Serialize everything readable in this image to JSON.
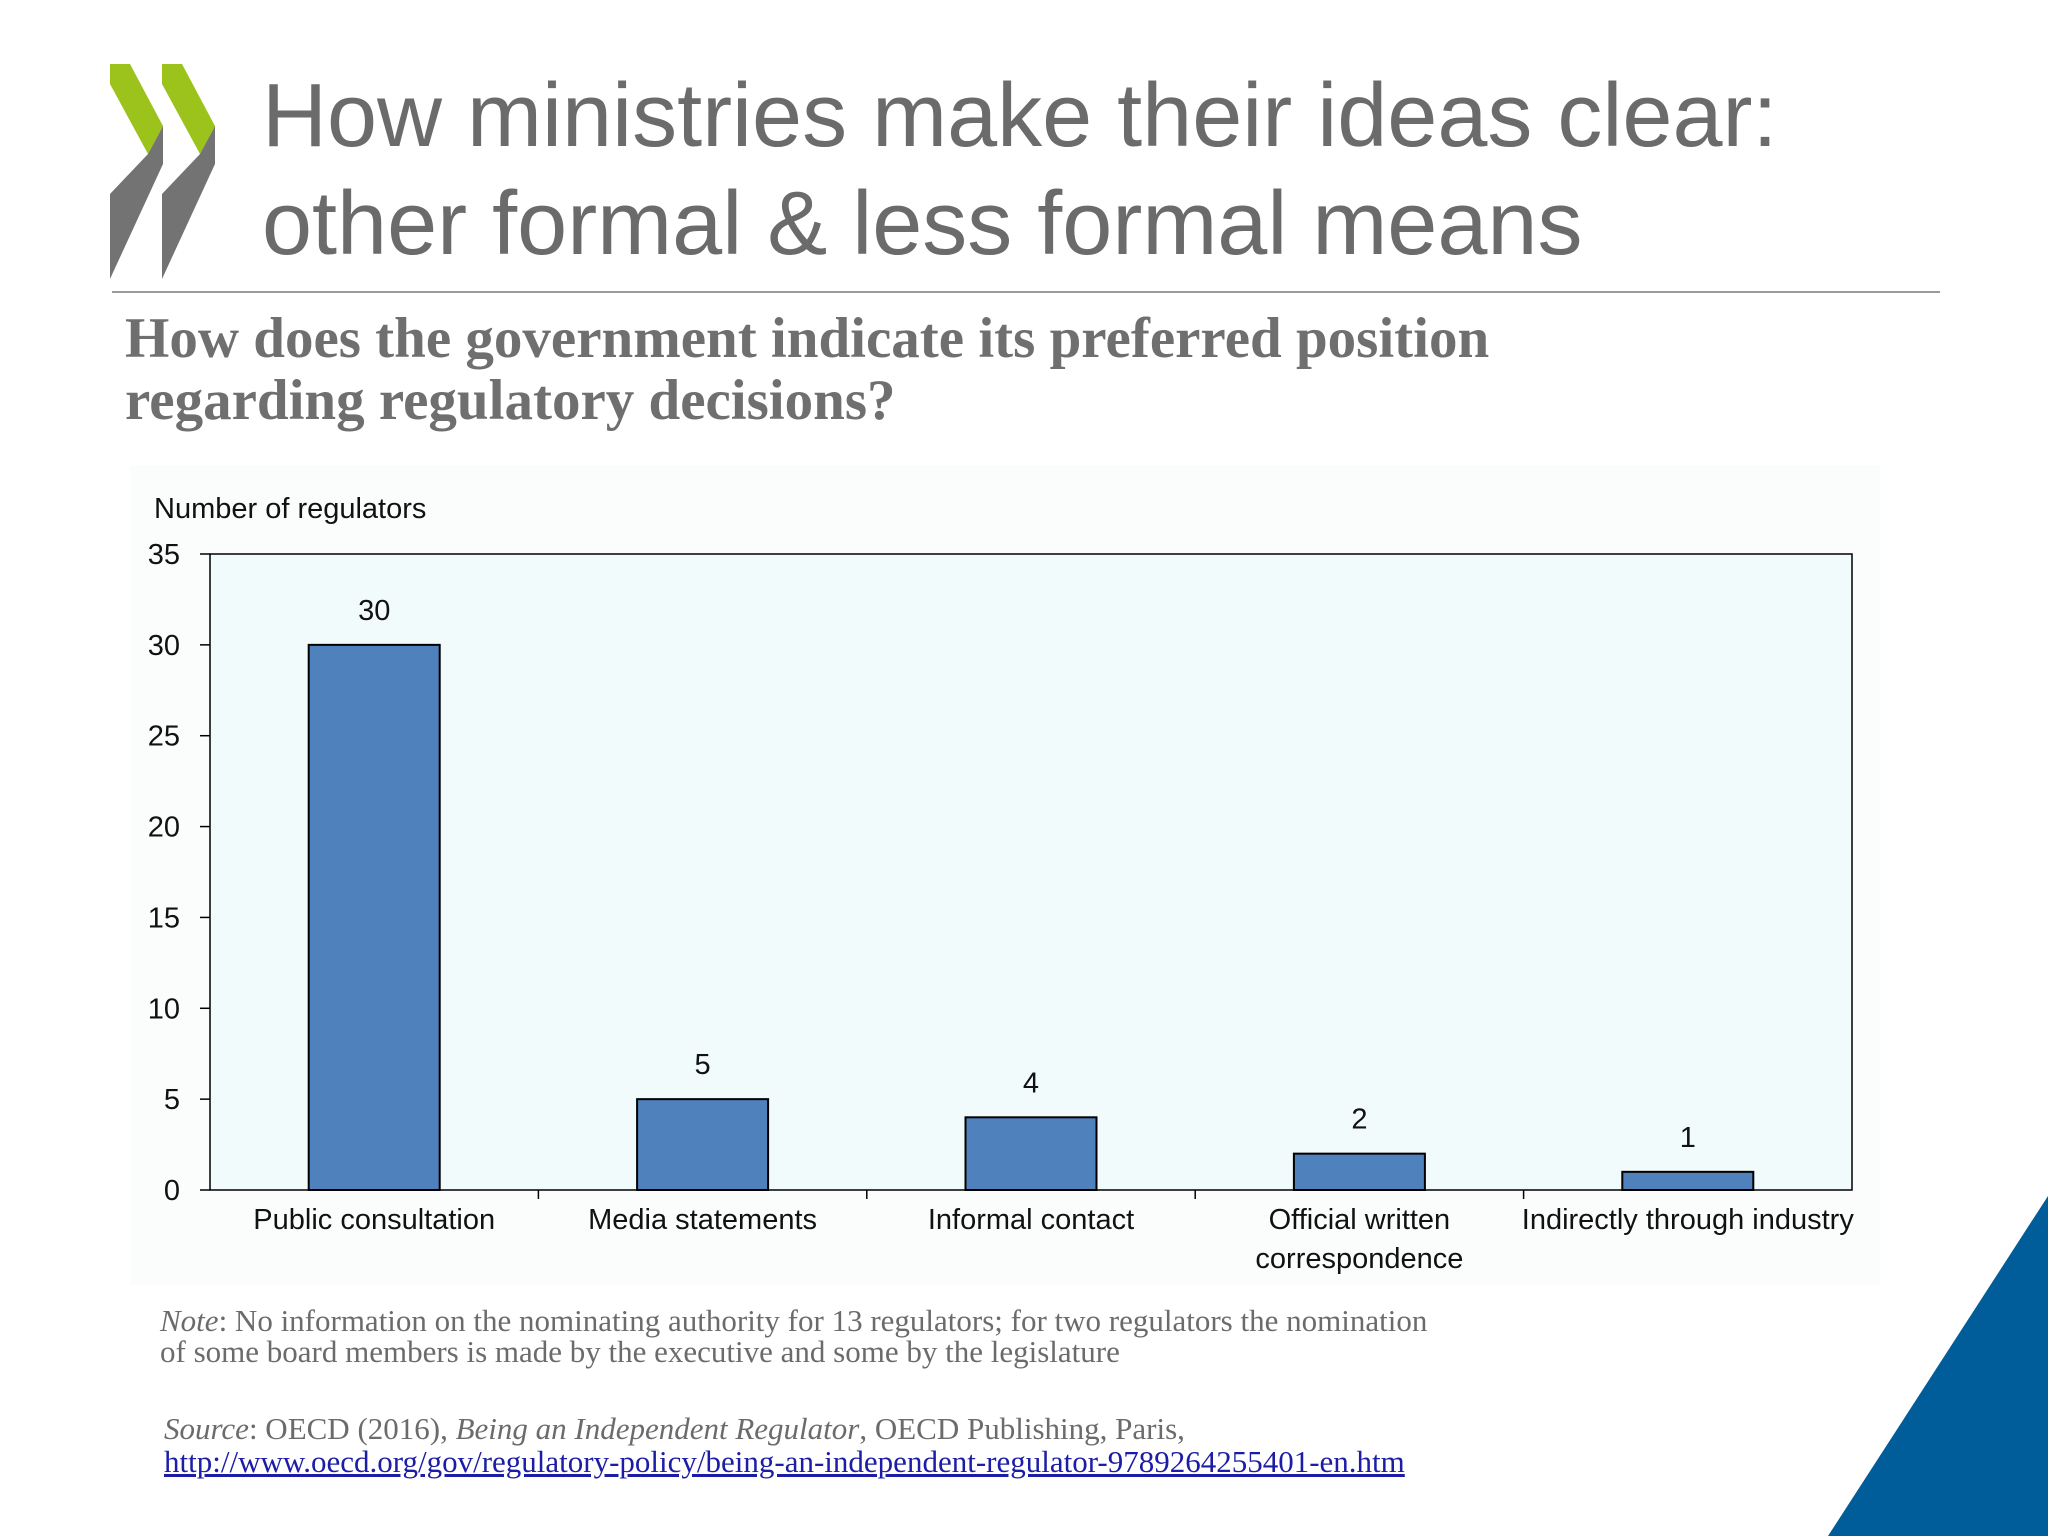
{
  "header": {
    "title_line1": "How ministries make their ideas clear:",
    "title_line2": "other formal & less formal means"
  },
  "subtitle": {
    "line1": "How does the government indicate its preferred position",
    "line2": "regarding regulatory decisions?"
  },
  "colors": {
    "bar": "#4f81bd",
    "plot_background": "#f2fbfc",
    "logo_green": "#9bc31c",
    "logo_gray": "#737373",
    "corner_blue": "#005d99",
    "title_gray": "#6b6b6b"
  },
  "chart_data": {
    "type": "bar",
    "title": "",
    "ylabel": "Number of regulators",
    "xlabel": "",
    "categories": [
      [
        "Public consultation"
      ],
      [
        "Media statements"
      ],
      [
        "Informal contact"
      ],
      [
        "Official written",
        "correspondence"
      ],
      [
        "Indirectly through industry"
      ]
    ],
    "values": [
      30,
      5,
      4,
      2,
      1
    ],
    "data_labels": [
      "30",
      "5",
      "4",
      "2",
      "1"
    ],
    "ylim": [
      0,
      35
    ],
    "yticks": [
      0,
      5,
      10,
      15,
      20,
      25,
      30,
      35
    ],
    "grid": false,
    "legend": "none"
  },
  "note": {
    "label": "Note",
    "line1": ": No information on the nominating authority for 13 regulators; for two regulators the nomination",
    "line2": "of some board members is made by the executive and some by the legislature"
  },
  "source": {
    "label": "Source",
    "text_a": ": OECD (2016), ",
    "book_title": "Being an Independent Regulator",
    "text_b": ", OECD Publishing, Paris,",
    "url": "http://www.oecd.org/gov/regulatory-policy/being-an-independent-regulator-9789264255401-en.htm"
  }
}
